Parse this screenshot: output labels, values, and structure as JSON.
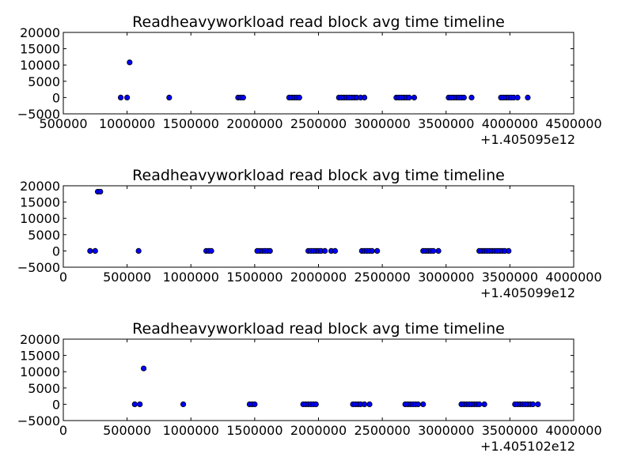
{
  "chart_data": [
    {
      "type": "scatter",
      "title": "Readheavyworkload read block avg time timeline",
      "xlabel": "",
      "ylabel": "",
      "x_offset_label": "+1.405095e12",
      "xlim": [
        500000,
        4500000
      ],
      "ylim": [
        -5000,
        20000
      ],
      "x_ticks": [
        "500000",
        "1000000",
        "1500000",
        "2000000",
        "2500000",
        "3000000",
        "3500000",
        "4000000",
        "4500000"
      ],
      "y_ticks": [
        "20000",
        "15000",
        "10000",
        "5000",
        "0",
        "−5000"
      ],
      "grid": false,
      "point_color": "#0000ff",
      "points": [
        [
          950000,
          0
        ],
        [
          1000000,
          0
        ],
        [
          1020000,
          10800
        ],
        [
          1330000,
          0
        ],
        [
          1870000,
          0
        ],
        [
          1890000,
          0
        ],
        [
          1910000,
          0
        ],
        [
          2270000,
          0
        ],
        [
          2290000,
          0
        ],
        [
          2310000,
          0
        ],
        [
          2330000,
          0
        ],
        [
          2350000,
          0
        ],
        [
          2660000,
          0
        ],
        [
          2680000,
          0
        ],
        [
          2700000,
          0
        ],
        [
          2720000,
          0
        ],
        [
          2740000,
          0
        ],
        [
          2760000,
          0
        ],
        [
          2780000,
          0
        ],
        [
          2800000,
          0
        ],
        [
          2830000,
          0
        ],
        [
          2860000,
          0
        ],
        [
          3110000,
          0
        ],
        [
          3130000,
          0
        ],
        [
          3150000,
          0
        ],
        [
          3170000,
          0
        ],
        [
          3190000,
          0
        ],
        [
          3210000,
          0
        ],
        [
          3250000,
          0
        ],
        [
          3520000,
          0
        ],
        [
          3540000,
          0
        ],
        [
          3560000,
          0
        ],
        [
          3580000,
          0
        ],
        [
          3600000,
          0
        ],
        [
          3620000,
          0
        ],
        [
          3640000,
          0
        ],
        [
          3700000,
          0
        ],
        [
          3930000,
          0
        ],
        [
          3950000,
          0
        ],
        [
          3970000,
          0
        ],
        [
          3990000,
          0
        ],
        [
          4010000,
          0
        ],
        [
          4030000,
          0
        ],
        [
          4060000,
          0
        ],
        [
          4140000,
          0
        ]
      ]
    },
    {
      "type": "scatter",
      "title": "Readheavyworkload read block avg time timeline",
      "xlabel": "",
      "ylabel": "",
      "x_offset_label": "+1.405099e12",
      "xlim": [
        0,
        4000000
      ],
      "ylim": [
        -5000,
        20000
      ],
      "x_ticks": [
        "0",
        "500000",
        "1000000",
        "1500000",
        "2000000",
        "2500000",
        "3000000",
        "3500000",
        "4000000"
      ],
      "y_ticks": [
        "20000",
        "15000",
        "10000",
        "5000",
        "0",
        "−5000"
      ],
      "grid": false,
      "point_color": "#0000ff",
      "points": [
        [
          210000,
          0
        ],
        [
          250000,
          0
        ],
        [
          270000,
          18200
        ],
        [
          290000,
          18200
        ],
        [
          590000,
          0
        ],
        [
          1120000,
          0
        ],
        [
          1140000,
          0
        ],
        [
          1160000,
          0
        ],
        [
          1520000,
          0
        ],
        [
          1540000,
          0
        ],
        [
          1560000,
          0
        ],
        [
          1580000,
          0
        ],
        [
          1600000,
          0
        ],
        [
          1620000,
          0
        ],
        [
          1920000,
          0
        ],
        [
          1940000,
          0
        ],
        [
          1960000,
          0
        ],
        [
          1980000,
          0
        ],
        [
          2000000,
          0
        ],
        [
          2020000,
          0
        ],
        [
          2050000,
          0
        ],
        [
          2100000,
          0
        ],
        [
          2130000,
          0
        ],
        [
          2340000,
          0
        ],
        [
          2360000,
          0
        ],
        [
          2380000,
          0
        ],
        [
          2400000,
          0
        ],
        [
          2420000,
          0
        ],
        [
          2460000,
          0
        ],
        [
          2820000,
          0
        ],
        [
          2840000,
          0
        ],
        [
          2860000,
          0
        ],
        [
          2880000,
          0
        ],
        [
          2900000,
          0
        ],
        [
          2940000,
          0
        ],
        [
          3260000,
          0
        ],
        [
          3280000,
          0
        ],
        [
          3300000,
          0
        ],
        [
          3320000,
          0
        ],
        [
          3340000,
          0
        ],
        [
          3360000,
          0
        ],
        [
          3380000,
          0
        ],
        [
          3400000,
          0
        ],
        [
          3420000,
          0
        ],
        [
          3440000,
          0
        ],
        [
          3460000,
          0
        ],
        [
          3490000,
          0
        ]
      ]
    },
    {
      "type": "scatter",
      "title": "Readheavyworkload read block avg time timeline",
      "xlabel": "",
      "ylabel": "",
      "x_offset_label": "+1.405102e12",
      "xlim": [
        0,
        4000000
      ],
      "ylim": [
        -5000,
        20000
      ],
      "x_ticks": [
        "0",
        "500000",
        "1000000",
        "1500000",
        "2000000",
        "2500000",
        "3000000",
        "3500000",
        "4000000"
      ],
      "y_ticks": [
        "20000",
        "15000",
        "10000",
        "5000",
        "0",
        "−5000"
      ],
      "grid": false,
      "point_color": "#0000ff",
      "points": [
        [
          560000,
          0
        ],
        [
          600000,
          0
        ],
        [
          630000,
          11000
        ],
        [
          940000,
          0
        ],
        [
          1460000,
          0
        ],
        [
          1480000,
          0
        ],
        [
          1500000,
          0
        ],
        [
          1880000,
          0
        ],
        [
          1900000,
          0
        ],
        [
          1920000,
          0
        ],
        [
          1940000,
          0
        ],
        [
          1960000,
          0
        ],
        [
          1980000,
          0
        ],
        [
          2270000,
          0
        ],
        [
          2290000,
          0
        ],
        [
          2310000,
          0
        ],
        [
          2330000,
          0
        ],
        [
          2360000,
          0
        ],
        [
          2400000,
          0
        ],
        [
          2680000,
          0
        ],
        [
          2700000,
          0
        ],
        [
          2720000,
          0
        ],
        [
          2740000,
          0
        ],
        [
          2760000,
          0
        ],
        [
          2780000,
          0
        ],
        [
          2820000,
          0
        ],
        [
          3120000,
          0
        ],
        [
          3140000,
          0
        ],
        [
          3160000,
          0
        ],
        [
          3180000,
          0
        ],
        [
          3200000,
          0
        ],
        [
          3220000,
          0
        ],
        [
          3240000,
          0
        ],
        [
          3260000,
          0
        ],
        [
          3300000,
          0
        ],
        [
          3540000,
          0
        ],
        [
          3560000,
          0
        ],
        [
          3580000,
          0
        ],
        [
          3600000,
          0
        ],
        [
          3620000,
          0
        ],
        [
          3640000,
          0
        ],
        [
          3660000,
          0
        ],
        [
          3680000,
          0
        ],
        [
          3720000,
          0
        ]
      ]
    }
  ]
}
